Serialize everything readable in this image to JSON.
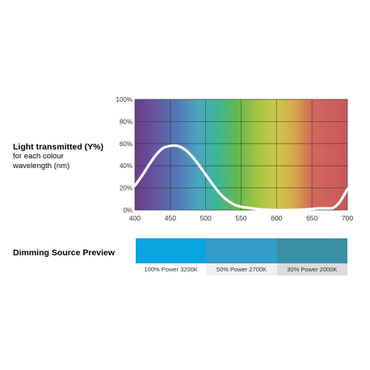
{
  "side_title": {
    "main": "Light transmitted (Y%)",
    "sub": "for each colour wavelength (nm)"
  },
  "dimming": {
    "title": "Dimming Source Preview",
    "swatches": [
      {
        "label": "100% Power 3200K",
        "color": "#0aa5e0",
        "label_bg": "#ffffff"
      },
      {
        "label": "50% Power 2700K",
        "color": "#339ccb",
        "label_bg": "#f0f0f0"
      },
      {
        "label": "30% Power 2000K",
        "color": "#3a8fa6",
        "label_bg": "#dcdcdc"
      }
    ]
  },
  "chart_data": {
    "type": "line",
    "xlabel": "",
    "ylabel": "",
    "xlim": [
      400,
      700
    ],
    "ylim": [
      0,
      100
    ],
    "x_ticks": [
      400,
      450,
      500,
      550,
      600,
      650,
      700
    ],
    "y_ticks": [
      "0%",
      "20%",
      "40%",
      "60%",
      "80%",
      "100%"
    ],
    "grid": true,
    "background": "visible spectrum gradient",
    "spectrum_colors": [
      {
        "x": 400,
        "color": "#6a3d86"
      },
      {
        "x": 430,
        "color": "#6457a0"
      },
      {
        "x": 460,
        "color": "#5577b4"
      },
      {
        "x": 490,
        "color": "#4aa6c0"
      },
      {
        "x": 515,
        "color": "#3db59a"
      },
      {
        "x": 545,
        "color": "#66b84f"
      },
      {
        "x": 575,
        "color": "#a8c542"
      },
      {
        "x": 600,
        "color": "#cdc84a"
      },
      {
        "x": 625,
        "color": "#d6a74a"
      },
      {
        "x": 650,
        "color": "#d1695c"
      },
      {
        "x": 700,
        "color": "#c9575a"
      }
    ],
    "series": [
      {
        "color": "#ffffff",
        "points": [
          [
            400,
            22
          ],
          [
            410,
            31
          ],
          [
            420,
            41
          ],
          [
            430,
            50
          ],
          [
            440,
            56
          ],
          [
            450,
            58
          ],
          [
            460,
            58
          ],
          [
            470,
            55
          ],
          [
            480,
            49
          ],
          [
            490,
            41
          ],
          [
            500,
            32
          ],
          [
            510,
            23
          ],
          [
            520,
            15
          ],
          [
            530,
            9
          ],
          [
            540,
            5
          ],
          [
            550,
            3
          ],
          [
            560,
            2
          ],
          [
            570,
            1
          ],
          [
            580,
            0.5
          ],
          [
            600,
            0
          ],
          [
            620,
            0
          ],
          [
            640,
            0.5
          ],
          [
            650,
            1
          ],
          [
            660,
            1.5
          ],
          [
            670,
            1.5
          ],
          [
            680,
            2
          ],
          [
            690,
            8
          ],
          [
            700,
            19
          ]
        ]
      }
    ]
  }
}
